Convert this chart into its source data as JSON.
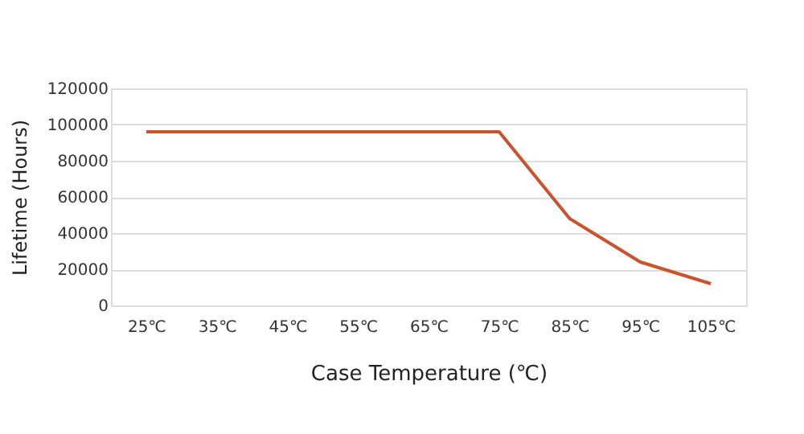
{
  "chart_data": {
    "type": "line",
    "xlabel": "Case Temperature (℃)",
    "ylabel": "Lifetime (Hours)",
    "categories": [
      "25℃",
      "35℃",
      "45℃",
      "55℃",
      "65℃",
      "75℃",
      "85℃",
      "95℃",
      "105℃"
    ],
    "series": [
      {
        "color": "#c9532d",
        "values": [
          96000,
          96000,
          96000,
          96000,
          96000,
          96000,
          48000,
          24000,
          12000
        ]
      }
    ],
    "ylim": [
      0,
      120000
    ],
    "yticks": [
      0,
      20000,
      40000,
      60000,
      80000,
      100000,
      120000
    ],
    "grid": "y",
    "marker": "none",
    "line_style": "solid"
  }
}
